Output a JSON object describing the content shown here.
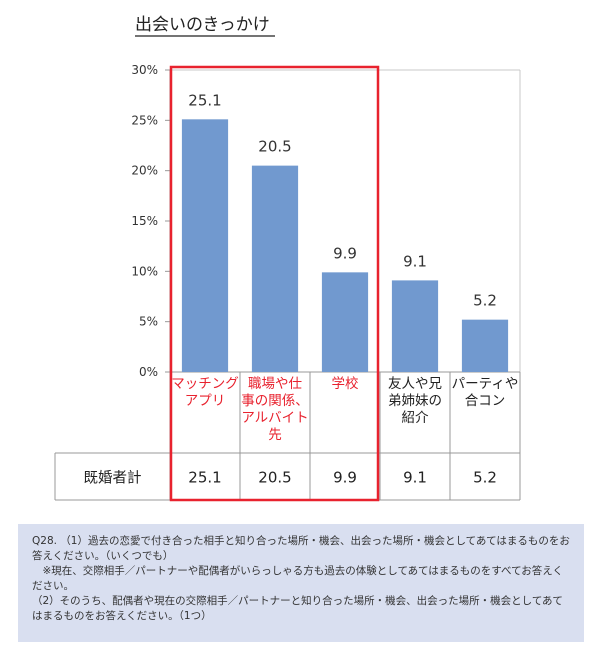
{
  "chart_data": {
    "type": "bar",
    "title": "出会いのきっかけ",
    "categories": [
      [
        "マッチング",
        "アプリ"
      ],
      [
        "職場や仕",
        "事の関係、",
        "アルバイト",
        "先"
      ],
      [
        "学校"
      ],
      [
        "友人や兄",
        "弟姉妹の",
        "紹介"
      ],
      [
        "パーティや",
        "合コン"
      ]
    ],
    "values": [
      25.1,
      20.5,
      9.9,
      9.1,
      5.2
    ],
    "data_labels": [
      "25.1",
      "20.5",
      "9.9",
      "9.1",
      "5.2"
    ],
    "ylim": [
      0,
      30
    ],
    "y_ticks": [
      0,
      5,
      10,
      15,
      20,
      25,
      30
    ],
    "y_tick_labels": [
      "0%",
      "5%",
      "10%",
      "15%",
      "20%",
      "25%",
      "30%"
    ],
    "bar_color": "#7199cf",
    "highlight_text_color": "#e8222e",
    "highlight_box_color": "#e8222e",
    "highlighted_categories": [
      0,
      1,
      2
    ],
    "grid": false,
    "table": {
      "row_label": "既婚者計",
      "cells": [
        "25.1",
        "20.5",
        "9.9",
        "9.1",
        "5.2"
      ]
    }
  },
  "note": {
    "lines": [
      "Q28. （1）過去の恋愛で付き合った相手と知り合った場所・機会、出会った場所・機会としてあてはまるものをお答えください。（いくつでも）",
      "　※現在、交際相手／パートナーや配偶者がいらっしゃる方も過去の体験としてあてはまるものをすべてお答えください。",
      "（2）そのうち、配偶者や現在の交際相手／パートナーと知り合った場所・機会、出会った場所・機会としてあてはまるものをお答えください。（1つ）"
    ]
  }
}
